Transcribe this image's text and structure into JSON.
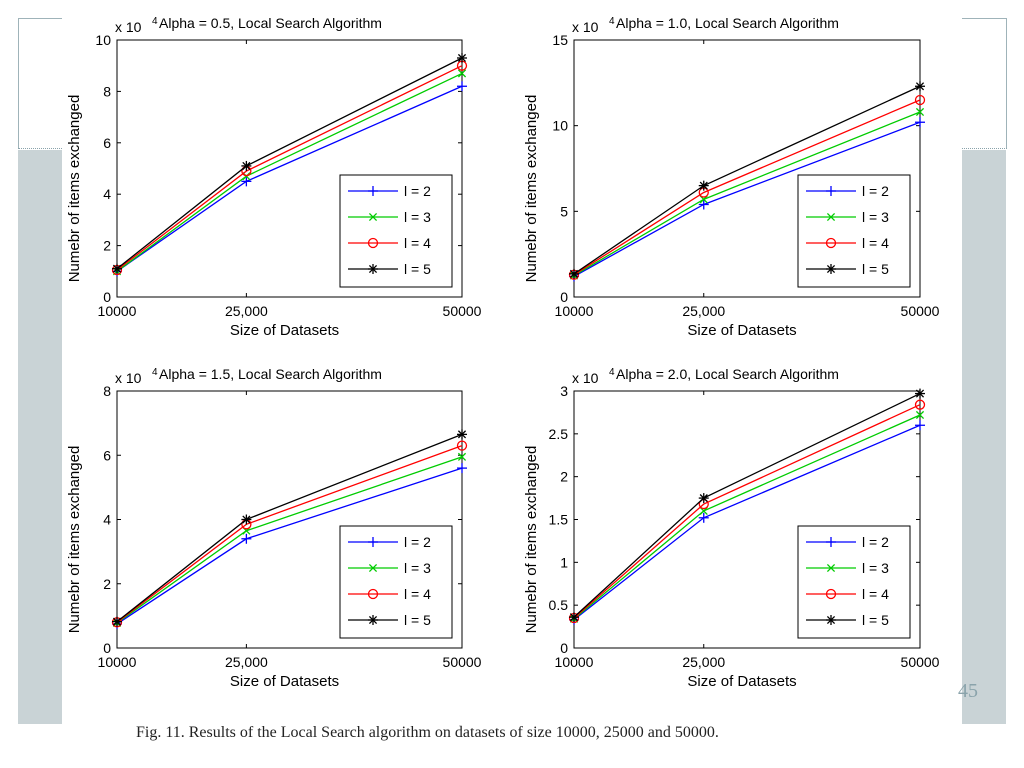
{
  "caption": "Fig. 11.   Results of the Local Search algorithm on datasets of size 10000, 25000 and 50000.",
  "page_number": "45",
  "colors": {
    "series": [
      "#0000ff",
      "#00cc00",
      "#ff0000",
      "#000000"
    ],
    "side_band": "#c9d3d6"
  },
  "chart_data": [
    {
      "type": "line",
      "title": "Alpha = 0.5, Local Search Algorithm",
      "exponent_label": "x 10",
      "exponent": "4",
      "xlabel": "Size of Datasets",
      "ylabel": "Numebr of items exchanged",
      "x": [
        10000,
        25000,
        50000
      ],
      "x_tick_labels": [
        "10000",
        "25,000",
        "50000"
      ],
      "ylim": [
        0,
        10
      ],
      "y_ticks": [
        "0",
        "2",
        "4",
        "6",
        "8",
        "10"
      ],
      "legend": "lower-right",
      "series": [
        {
          "name": "l = 2",
          "marker": "+",
          "values": [
            1.0,
            4.5,
            8.2
          ]
        },
        {
          "name": "l = 3",
          "marker": "x",
          "values": [
            1.0,
            4.7,
            8.7
          ]
        },
        {
          "name": "l = 4",
          "marker": "o",
          "values": [
            1.05,
            4.9,
            9.0
          ]
        },
        {
          "name": "l = 5",
          "marker": "*",
          "values": [
            1.1,
            5.1,
            9.3
          ]
        }
      ]
    },
    {
      "type": "line",
      "title": "Alpha = 1.0, Local Search Algorithm",
      "exponent_label": "x 10",
      "exponent": "4",
      "xlabel": "Size of Datasets",
      "ylabel": "Numebr of items exchanged",
      "x": [
        10000,
        25000,
        50000
      ],
      "x_tick_labels": [
        "10000",
        "25,000",
        "50000"
      ],
      "ylim": [
        0,
        15
      ],
      "y_ticks": [
        "0",
        "5",
        "10",
        "15"
      ],
      "legend": "lower-right",
      "series": [
        {
          "name": "l = 2",
          "marker": "+",
          "values": [
            1.2,
            5.4,
            10.2
          ]
        },
        {
          "name": "l = 3",
          "marker": "x",
          "values": [
            1.25,
            5.7,
            10.8
          ]
        },
        {
          "name": "l = 4",
          "marker": "o",
          "values": [
            1.3,
            6.1,
            11.5
          ]
        },
        {
          "name": "l = 5",
          "marker": "*",
          "values": [
            1.35,
            6.5,
            12.3
          ]
        }
      ]
    },
    {
      "type": "line",
      "title": "Alpha = 1.5, Local Search Algorithm",
      "exponent_label": "x 10",
      "exponent": "4",
      "xlabel": "Size of Datasets",
      "ylabel": "Numebr of items exchanged",
      "x": [
        10000,
        25000,
        50000
      ],
      "x_tick_labels": [
        "10000",
        "25,000",
        "50000"
      ],
      "ylim": [
        0,
        8
      ],
      "y_ticks": [
        "0",
        "2",
        "4",
        "6",
        "8"
      ],
      "legend": "lower-right",
      "series": [
        {
          "name": "l = 2",
          "marker": "+",
          "values": [
            0.75,
            3.4,
            5.6
          ]
        },
        {
          "name": "l = 3",
          "marker": "x",
          "values": [
            0.78,
            3.65,
            5.95
          ]
        },
        {
          "name": "l = 4",
          "marker": "o",
          "values": [
            0.8,
            3.85,
            6.3
          ]
        },
        {
          "name": "l = 5",
          "marker": "*",
          "values": [
            0.82,
            4.0,
            6.65
          ]
        }
      ]
    },
    {
      "type": "line",
      "title": "Alpha = 2.0, Local Search Algorithm",
      "exponent_label": "x 10",
      "exponent": "4",
      "xlabel": "Size of Datasets",
      "ylabel": "Numebr of items exchanged",
      "x": [
        10000,
        25000,
        50000
      ],
      "x_tick_labels": [
        "10000",
        "25,000",
        "50000"
      ],
      "ylim": [
        0,
        3
      ],
      "y_ticks": [
        "0",
        "0.5",
        "1",
        "1.5",
        "2",
        "2.5",
        "3"
      ],
      "legend": "lower-right",
      "series": [
        {
          "name": "l = 2",
          "marker": "+",
          "values": [
            0.33,
            1.52,
            2.6
          ]
        },
        {
          "name": "l = 3",
          "marker": "x",
          "values": [
            0.34,
            1.6,
            2.72
          ]
        },
        {
          "name": "l = 4",
          "marker": "o",
          "values": [
            0.35,
            1.68,
            2.84
          ]
        },
        {
          "name": "l = 5",
          "marker": "*",
          "values": [
            0.36,
            1.75,
            2.97
          ]
        }
      ]
    }
  ]
}
